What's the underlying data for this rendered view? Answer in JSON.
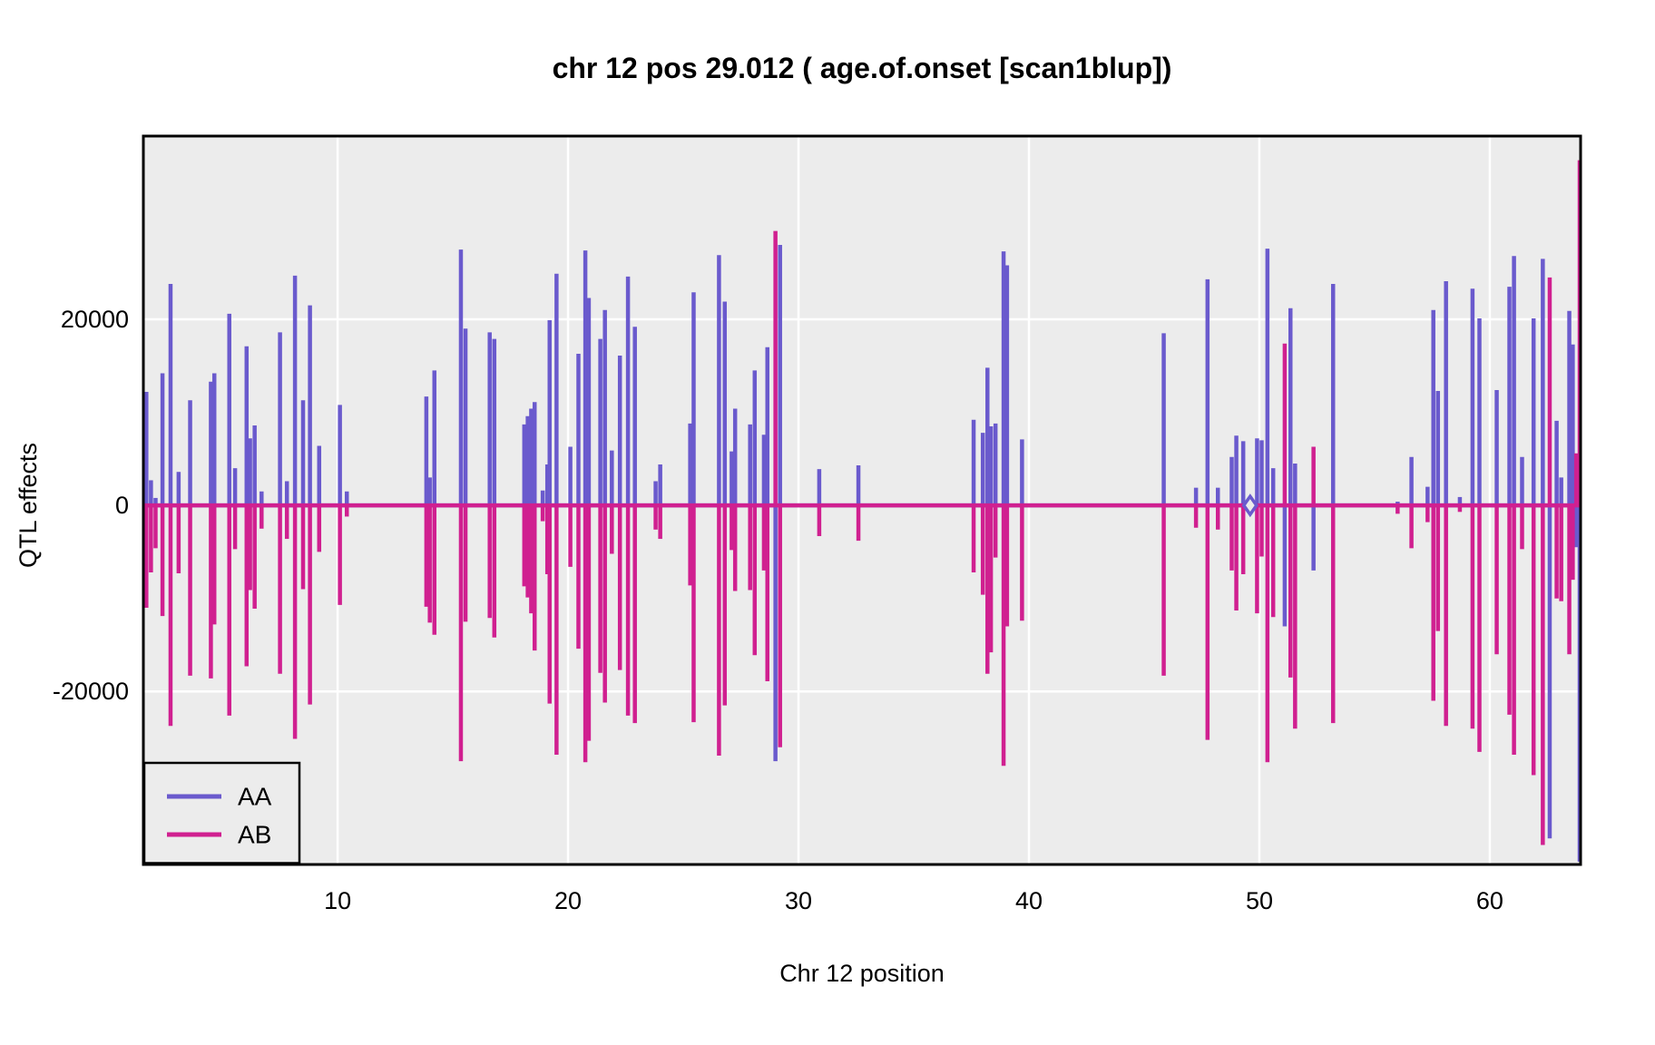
{
  "title": "chr 12 pos 29.012 ( age.of.onset  [scan1blup])",
  "colors": {
    "aa_series": "#6A5ACD",
    "ab_series": "#D02090",
    "panel_bg": "#ECECEC",
    "grid": "#FFFFFF",
    "border": "#000000",
    "text": "#000000",
    "page_bg": "#FFFFFF"
  },
  "chart_data": {
    "type": "line",
    "subtype": "needle-effect-plot (vertical spikes from baseline 0 at each marker, both series share a horizontal zero line)",
    "title": "chr 12 pos 29.012 ( age.of.onset  [scan1blup])",
    "xlabel": "Chr 12 position",
    "ylabel": "QTL effects",
    "xlim": [
      1.57,
      63.94
    ],
    "ylim": [
      -38600,
      39700
    ],
    "x_ticks": [
      10,
      20,
      30,
      40,
      50,
      60
    ],
    "y_ticks": [
      -20000,
      0,
      20000
    ],
    "grid": true,
    "legend": {
      "position": "bottom-left",
      "boxed": true,
      "entries": [
        {
          "label": "AA",
          "color": "#6A5ACD"
        },
        {
          "label": "AB",
          "color": "#D02090"
        }
      ]
    },
    "highlight_marker": {
      "pos": 49.6,
      "value": 0,
      "shape": "open-diamond",
      "color": "#6A5ACD"
    },
    "markers_format": "[position_cM, AA_effect, AB_effect]",
    "markers": [
      [
        1.7,
        12200,
        -11000
      ],
      [
        1.9,
        2700,
        -7200
      ],
      [
        2.1,
        800,
        -4600
      ],
      [
        2.4,
        14200,
        -11900
      ],
      [
        2.75,
        23800,
        -23700
      ],
      [
        3.1,
        3600,
        -7300
      ],
      [
        3.6,
        11300,
        -18300
      ],
      [
        4.5,
        13300,
        -18600
      ],
      [
        4.65,
        14200,
        -12800
      ],
      [
        5.3,
        20600,
        -22600
      ],
      [
        5.55,
        4000,
        -4700
      ],
      [
        6.05,
        17100,
        -17300
      ],
      [
        6.2,
        7200,
        -9100
      ],
      [
        6.4,
        8600,
        -11100
      ],
      [
        6.7,
        1500,
        -2500
      ],
      [
        7.5,
        18600,
        -18100
      ],
      [
        7.8,
        2600,
        -3600
      ],
      [
        8.15,
        24700,
        -25100
      ],
      [
        8.5,
        11300,
        -9000
      ],
      [
        8.8,
        21500,
        -21400
      ],
      [
        9.2,
        6400,
        -5000
      ],
      [
        10.1,
        10800,
        -10700
      ],
      [
        10.4,
        1500,
        -1200
      ],
      [
        13.85,
        11700,
        -10900
      ],
      [
        14.0,
        3000,
        -12600
      ],
      [
        14.2,
        14500,
        -13900
      ],
      [
        15.35,
        27500,
        -27500
      ],
      [
        15.55,
        19000,
        -12500
      ],
      [
        16.6,
        18600,
        -12100
      ],
      [
        16.8,
        17900,
        -14200
      ],
      [
        18.1,
        8700,
        -8700
      ],
      [
        18.25,
        9600,
        -9900
      ],
      [
        18.4,
        10400,
        -11600
      ],
      [
        18.55,
        11100,
        -15600
      ],
      [
        18.9,
        1600,
        -1700
      ],
      [
        19.1,
        4400,
        -7400
      ],
      [
        19.2,
        19900,
        -21300
      ],
      [
        19.5,
        24900,
        -26800
      ],
      [
        20.1,
        6300,
        -6600
      ],
      [
        20.45,
        16300,
        -15400
      ],
      [
        20.75,
        27400,
        -27600
      ],
      [
        20.9,
        22300,
        -25300
      ],
      [
        21.4,
        17900,
        -18000
      ],
      [
        21.6,
        21000,
        -21200
      ],
      [
        21.9,
        5900,
        -5200
      ],
      [
        22.25,
        16100,
        -17700
      ],
      [
        22.6,
        24600,
        -22600
      ],
      [
        22.9,
        19200,
        -23400
      ],
      [
        23.8,
        2600,
        -2600
      ],
      [
        24.0,
        4400,
        -3600
      ],
      [
        25.3,
        8800,
        -8600
      ],
      [
        25.45,
        22900,
        -23300
      ],
      [
        26.55,
        26900,
        -26900
      ],
      [
        26.8,
        21900,
        -21500
      ],
      [
        27.1,
        5800,
        -4800
      ],
      [
        27.25,
        10400,
        -9200
      ],
      [
        27.9,
        8700,
        -9100
      ],
      [
        28.1,
        14500,
        -16100
      ],
      [
        28.5,
        7600,
        -7000
      ],
      [
        28.65,
        17000,
        -18900
      ],
      [
        29.0,
        -27500,
        29500
      ],
      [
        29.2,
        28000,
        -26000
      ],
      [
        30.9,
        3900,
        -3300
      ],
      [
        32.6,
        4300,
        -3800
      ],
      [
        37.6,
        9200,
        -7200
      ],
      [
        38.0,
        7800,
        -9600
      ],
      [
        38.2,
        14800,
        -18100
      ],
      [
        38.35,
        8500,
        -15800
      ],
      [
        38.55,
        8800,
        -5600
      ],
      [
        38.9,
        27300,
        -28000
      ],
      [
        39.05,
        25800,
        -13000
      ],
      [
        39.7,
        7100,
        -12400
      ],
      [
        45.85,
        18500,
        -18300
      ],
      [
        47.25,
        1900,
        -2400
      ],
      [
        47.75,
        24300,
        -25200
      ],
      [
        48.2,
        1900,
        -2600
      ],
      [
        48.8,
        5200,
        -7000
      ],
      [
        49.0,
        7500,
        -11300
      ],
      [
        49.3,
        6900,
        -7400
      ],
      [
        49.9,
        7200,
        -11600
      ],
      [
        50.1,
        7000,
        -5500
      ],
      [
        50.35,
        27600,
        -27600
      ],
      [
        50.6,
        4000,
        -12000
      ],
      [
        51.1,
        -13000,
        17400
      ],
      [
        51.35,
        21200,
        -18500
      ],
      [
        51.55,
        4500,
        -24000
      ],
      [
        52.35,
        -7000,
        6300
      ],
      [
        53.2,
        23800,
        -23400
      ],
      [
        56.0,
        400,
        -900
      ],
      [
        56.6,
        5200,
        -4600
      ],
      [
        57.3,
        2000,
        -1800
      ],
      [
        57.55,
        21000,
        -21000
      ],
      [
        57.75,
        12300,
        -13500
      ],
      [
        58.1,
        24100,
        -23700
      ],
      [
        58.7,
        900,
        -700
      ],
      [
        59.25,
        23300,
        -24000
      ],
      [
        59.55,
        20100,
        -26500
      ],
      [
        60.3,
        12400,
        -16000
      ],
      [
        60.85,
        23500,
        -22500
      ],
      [
        61.05,
        26800,
        -26800
      ],
      [
        61.4,
        5200,
        -4700
      ],
      [
        61.9,
        20100,
        -29000
      ],
      [
        62.3,
        26500,
        -36500
      ],
      [
        62.6,
        -35800,
        24500
      ],
      [
        62.9,
        9100,
        -10000
      ],
      [
        63.1,
        3000,
        -10300
      ],
      [
        63.45,
        20900,
        -16000
      ],
      [
        63.6,
        17300,
        -8000
      ],
      [
        63.75,
        -4500,
        5600
      ],
      [
        63.9,
        -38300,
        37100
      ]
    ]
  }
}
